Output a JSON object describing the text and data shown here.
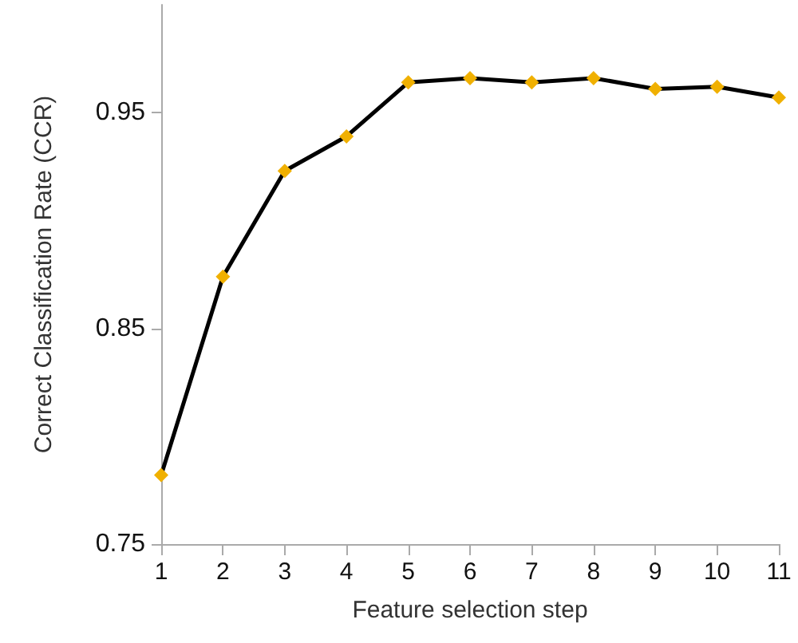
{
  "chart_data": {
    "type": "line",
    "xlabel": "Feature selection step",
    "ylabel": "Correct Classification Rate (CCR)",
    "categories": [
      "1",
      "2",
      "3",
      "4",
      "5",
      "6",
      "7",
      "8",
      "9",
      "10",
      "11"
    ],
    "series": [
      {
        "color": "#000000",
        "colors": [
          "#f0b000",
          "#f0b000",
          "#f0b000",
          "#f0b000",
          "#f0b000",
          "#f0b000",
          "#f0b000",
          "#f0b000",
          "#f0b000",
          "#f0b000",
          "#f0b000"
        ],
        "values": [
          0.782,
          0.874,
          0.923,
          0.939,
          0.964,
          0.966,
          0.964,
          0.966,
          0.961,
          0.962,
          0.957
        ]
      }
    ],
    "marker": "diamond",
    "ylim": [
      0.75,
      1.0
    ],
    "yticks": [
      0.75,
      0.85,
      0.95
    ],
    "grid": false,
    "legend": false
  }
}
